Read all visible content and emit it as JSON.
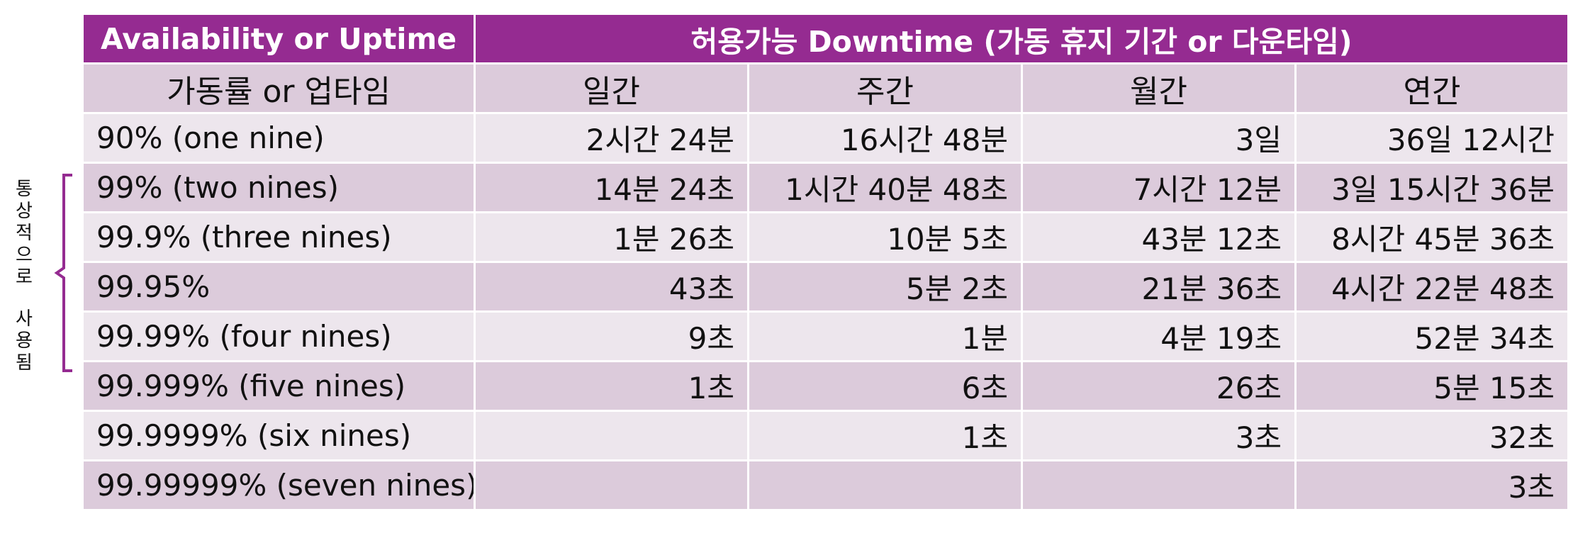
{
  "side_note": {
    "text": "통상적으로 사용됨",
    "chars_top": [
      "통",
      "상",
      "적",
      "으",
      "로"
    ],
    "chars_bottom": [
      "사",
      "용",
      "됨"
    ],
    "bracket_color": "#952b91"
  },
  "table": {
    "header_main": {
      "availability": "Availability or Uptime",
      "downtime": "허용가능 Downtime (가동 휴지 기간 or 다운타임)"
    },
    "header_sub": {
      "availability": "가동률 or 업타임",
      "daily": "일간",
      "weekly": "주간",
      "monthly": "월간",
      "yearly": "연간"
    },
    "rows": [
      {
        "availability": "90% (one nine)",
        "daily": "2시간 24분",
        "weekly": "16시간 48분",
        "monthly": "3일",
        "yearly": "36일 12시간"
      },
      {
        "availability": "99% (two nines)",
        "daily": "14분 24초",
        "weekly": "1시간 40분 48초",
        "monthly": "7시간 12분",
        "yearly": "3일 15시간 36분"
      },
      {
        "availability": "99.9% (three nines)",
        "daily": "1분 26초",
        "weekly": "10분 5초",
        "monthly": "43분 12초",
        "yearly": "8시간 45분 36초"
      },
      {
        "availability": "99.95%",
        "daily": "43초",
        "weekly": "5분 2초",
        "monthly": "21분 36초",
        "yearly": "4시간 22분 48초"
      },
      {
        "availability": "99.99% (four nines)",
        "daily": "9초",
        "weekly": "1분",
        "monthly": "4분 19초",
        "yearly": "52분 34초"
      },
      {
        "availability": "99.999% (five nines)",
        "daily": "1초",
        "weekly": "6초",
        "monthly": "26초",
        "yearly": "5분 15초"
      },
      {
        "availability": "99.9999% (six nines)",
        "daily": "",
        "weekly": "1초",
        "monthly": "3초",
        "yearly": "32초"
      },
      {
        "availability": "99.99999% (seven nines)",
        "daily": "",
        "weekly": "",
        "monthly": "",
        "yearly": "3초"
      }
    ],
    "colors": {
      "header": "#952b91",
      "row_light": "#ede6ed",
      "row_dark": "#dccbdb"
    }
  }
}
